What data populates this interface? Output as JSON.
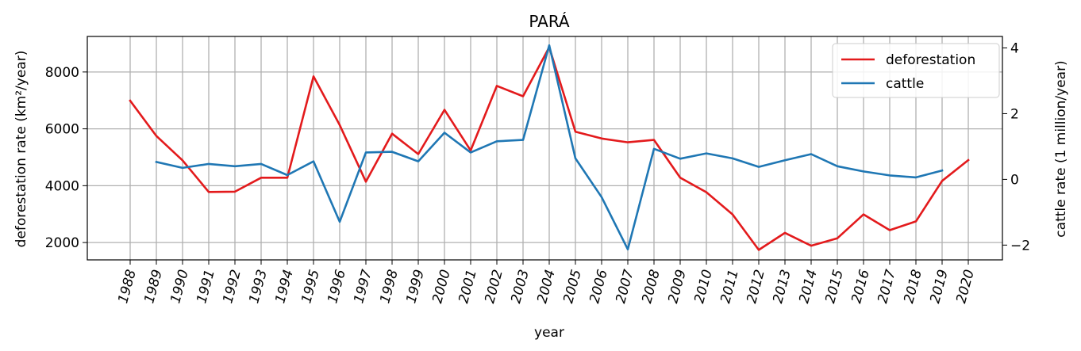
{
  "chart_data": {
    "type": "line",
    "title": "PARÁ",
    "xlabel": "year",
    "ylabel": "deforestation rate (km²/year)",
    "y2label": "cattle rate (1 million/year)",
    "x": [
      1988,
      1989,
      1990,
      1991,
      1992,
      1993,
      1994,
      1995,
      1996,
      1997,
      1998,
      1999,
      2000,
      2001,
      2002,
      2003,
      2004,
      2005,
      2006,
      2007,
      2008,
      2009,
      2010,
      2011,
      2012,
      2013,
      2014,
      2015,
      2016,
      2017,
      2018,
      2019,
      2020
    ],
    "x_tick_labels": [
      "1988",
      "1989",
      "1990",
      "1991",
      "1992",
      "1993",
      "1994",
      "1995",
      "1996",
      "1997",
      "1998",
      "1999",
      "2000",
      "2001",
      "2002",
      "2003",
      "2004",
      "2005",
      "2006",
      "2007",
      "2008",
      "2009",
      "2010",
      "2011",
      "2012",
      "2013",
      "2014",
      "2015",
      "2016",
      "2017",
      "2018",
      "2019",
      "2020"
    ],
    "y_ticks": [
      2000,
      4000,
      6000,
      8000
    ],
    "y_tick_labels": [
      "2000",
      "4000",
      "6000",
      "8000"
    ],
    "ylim": [
      1390,
      9250
    ],
    "y2_ticks": [
      -2,
      0,
      2,
      4
    ],
    "y2_tick_labels": [
      "−2",
      "0",
      "2",
      "4"
    ],
    "y2lim": [
      -2.45,
      4.35
    ],
    "grid": true,
    "legend_position": "top-right",
    "series": [
      {
        "name": "deforestation",
        "axis": "left",
        "color": "#e31a1c",
        "x": [
          1988,
          1989,
          1990,
          1991,
          1992,
          1993,
          1994,
          1995,
          1996,
          1997,
          1998,
          1999,
          2000,
          2001,
          2002,
          2003,
          2004,
          2005,
          2006,
          2007,
          2008,
          2009,
          2010,
          2011,
          2012,
          2013,
          2014,
          2015,
          2016,
          2017,
          2018,
          2019,
          2020
        ],
        "values": [
          6990,
          5750,
          4890,
          3780,
          3790,
          4280,
          4280,
          7845,
          6135,
          4140,
          5830,
          5110,
          6670,
          5240,
          7510,
          7145,
          8870,
          5900,
          5660,
          5525,
          5610,
          4280,
          3770,
          2990,
          1740,
          2340,
          1890,
          2150,
          2990,
          2435,
          2745,
          4170,
          4900
        ]
      },
      {
        "name": "cattle",
        "axis": "right",
        "color": "#1f77b4",
        "x": [
          1989,
          1990,
          1991,
          1992,
          1993,
          1994,
          1995,
          1996,
          1997,
          1998,
          1999,
          2000,
          2001,
          2002,
          2003,
          2004,
          2005,
          2006,
          2007,
          2008,
          2009,
          2010,
          2011,
          2012,
          2013,
          2014,
          2015,
          2016,
          2017,
          2018,
          2019
        ],
        "values": [
          0.53,
          0.35,
          0.47,
          0.4,
          0.47,
          0.13,
          0.55,
          -1.29,
          0.82,
          0.84,
          0.55,
          1.42,
          0.82,
          1.16,
          1.2,
          4.08,
          0.64,
          -0.54,
          -2.13,
          0.93,
          0.63,
          0.79,
          0.64,
          0.38,
          0.58,
          0.77,
          0.4,
          0.24,
          0.12,
          0.06,
          0.27
        ]
      }
    ]
  }
}
